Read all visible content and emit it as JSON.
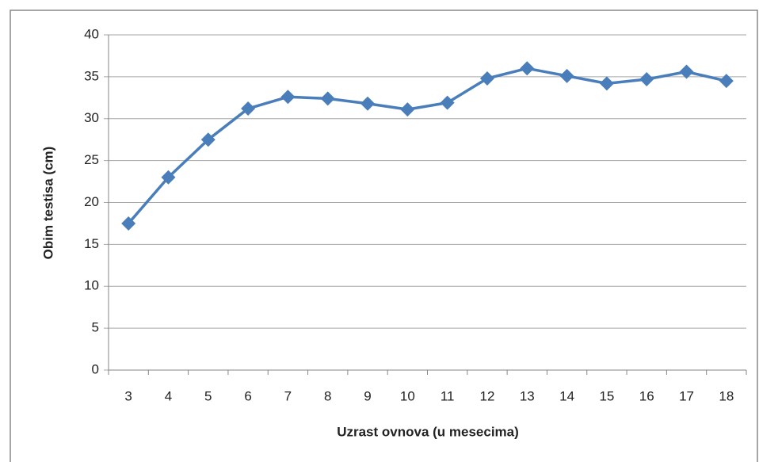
{
  "chart_data": {
    "type": "line",
    "xlabel": "Uzrast ovnova (u mesecima)",
    "ylabel": "Obim testisa (cm)",
    "categories": [
      "3",
      "4",
      "5",
      "6",
      "7",
      "8",
      "9",
      "10",
      "11",
      "12",
      "13",
      "14",
      "15",
      "16",
      "17",
      "18"
    ],
    "series": [
      {
        "name": "Obim testisa",
        "color": "#4a7ebb",
        "values": [
          17.5,
          23,
          27.5,
          31.2,
          32.6,
          32.4,
          31.8,
          31.1,
          31.9,
          34.8,
          36.0,
          35.1,
          34.2,
          34.7,
          35.6,
          34.5
        ]
      }
    ],
    "ylim": [
      0,
      40
    ],
    "yticks": [
      0,
      5,
      10,
      15,
      20,
      25,
      30,
      35,
      40
    ],
    "grid": true
  }
}
